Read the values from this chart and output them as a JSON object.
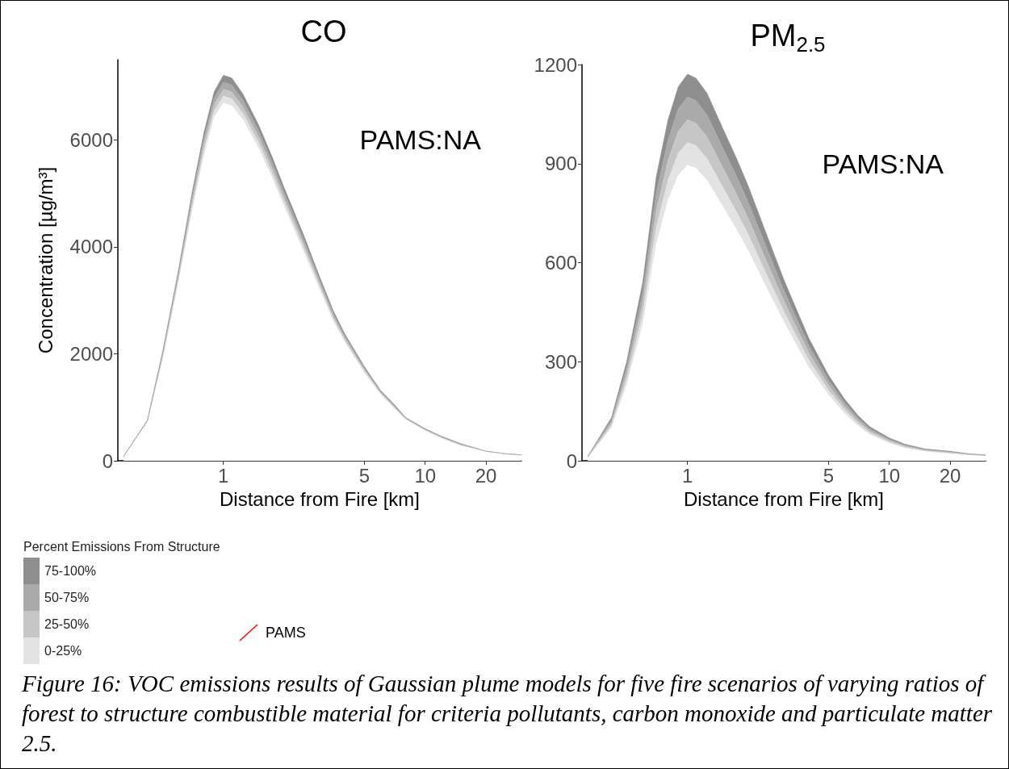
{
  "chart_data": [
    {
      "type": "area",
      "title": "CO",
      "xlabel": "Distance from Fire [km]",
      "ylabel": "Concentration [µg/m³]",
      "legend_title": "Percent Emissions From Structure",
      "log": "x",
      "stacked": true,
      "marker": "none",
      "grid": false,
      "legend": "bottom left",
      "xlim": [
        0.3,
        30
      ],
      "xticks": [
        1,
        5,
        10,
        20
      ],
      "ylim": [
        0,
        7500
      ],
      "yticks": [
        0,
        2000,
        4000,
        6000
      ],
      "x": [
        0.32,
        0.42,
        0.5,
        0.6,
        0.7,
        0.8,
        0.9,
        1,
        1.1,
        1.25,
        1.5,
        1.75,
        2,
        2.5,
        3,
        3.5,
        4,
        5,
        6,
        7,
        8,
        10,
        12,
        15,
        20,
        25,
        30
      ],
      "series": [
        {
          "color": "#ffffff",
          "values": [
            80,
            720,
            1880,
            3340,
            4660,
            5690,
            6420,
            6690,
            6640,
            6380,
            5830,
            5270,
            4750,
            3900,
            3200,
            2610,
            2210,
            1640,
            1240,
            980,
            770,
            560,
            420,
            280,
            180,
            130,
            110
          ]
        },
        {
          "name": "0-25%",
          "color": "#e3e3e3",
          "values": [
            0,
            10,
            40,
            60,
            90,
            110,
            120,
            130,
            130,
            120,
            110,
            100,
            90,
            80,
            60,
            50,
            40,
            30,
            20,
            20,
            10,
            10,
            10,
            10,
            0,
            0,
            0
          ]
        },
        {
          "name": "25-50%",
          "color": "#c6c6c6",
          "values": [
            0,
            10,
            40,
            60,
            90,
            110,
            120,
            130,
            130,
            120,
            110,
            100,
            90,
            80,
            60,
            50,
            40,
            30,
            20,
            20,
            10,
            10,
            10,
            10,
            0,
            0,
            0
          ]
        },
        {
          "name": "50-75%",
          "color": "#aaaaaa",
          "values": [
            0,
            10,
            40,
            60,
            90,
            110,
            120,
            130,
            130,
            120,
            110,
            100,
            90,
            80,
            60,
            50,
            40,
            30,
            20,
            20,
            10,
            10,
            10,
            10,
            0,
            0,
            0
          ]
        },
        {
          "name": "75-100%",
          "color": "#8e8e8e",
          "values": [
            0,
            10,
            40,
            60,
            90,
            110,
            120,
            130,
            130,
            120,
            110,
            100,
            90,
            80,
            60,
            50,
            40,
            30,
            20,
            20,
            10,
            10,
            10,
            10,
            0,
            0,
            0
          ]
        },
        {
          "type": "line",
          "name": "PAMS",
          "color": "#ff0000",
          "values": [
            null,
            null,
            null,
            null,
            null,
            null,
            null,
            null,
            null,
            null,
            null,
            null,
            null,
            null,
            null,
            null,
            null,
            null,
            null,
            null,
            null,
            null,
            null,
            null,
            null,
            null,
            null
          ]
        }
      ],
      "annotations": [
        "PAMS:NA",
        "Figure 16: VOC emissions results of Gaussian plume models for five fire scenarios of varying ratios of forest to structure combustible material for criteria pollutants, carbon monoxide and particulate matter 2.5."
      ]
    },
    {
      "type": "area",
      "title": "PM$_{2.5}$",
      "xlabel": "Distance from Fire [km]",
      "log": "x",
      "stacked": true,
      "marker": "none",
      "grid": false,
      "xlim": [
        0.3,
        30
      ],
      "xticks": [
        1,
        5,
        10,
        20
      ],
      "ylim": [
        0,
        1200
      ],
      "yticks": [
        0,
        300,
        600,
        900,
        1200
      ],
      "x": [
        0.32,
        0.42,
        0.5,
        0.6,
        0.7,
        0.8,
        0.9,
        1,
        1.1,
        1.25,
        1.5,
        1.75,
        2,
        2.5,
        3,
        3.5,
        4,
        5,
        6,
        7,
        8,
        10,
        12,
        15,
        20,
        25,
        30
      ],
      "series": [
        {
          "color": "#ffffff",
          "values": [
            9,
            99,
            229,
            413,
            656,
            788,
            865,
            895,
            887,
            849,
            769,
            700,
            636,
            516,
            421,
            345,
            282,
            199,
            143,
            105,
            79,
            53,
            38,
            28,
            21,
            17,
            14
          ]
        },
        {
          "color": "#e3e3e3",
          "values": [
            1,
            8,
            18,
            32,
            51,
            61,
            67,
            69,
            68,
            66,
            59,
            54,
            49,
            40,
            32,
            27,
            22,
            15,
            11,
            8,
            6,
            4,
            3,
            2,
            2,
            1,
            1
          ]
        },
        {
          "color": "#c6c6c6",
          "values": [
            1,
            8,
            18,
            32,
            51,
            61,
            67,
            69,
            68,
            66,
            59,
            54,
            49,
            40,
            32,
            27,
            22,
            15,
            11,
            8,
            6,
            4,
            3,
            2,
            2,
            1,
            1
          ]
        },
        {
          "color": "#aaaaaa",
          "values": [
            1,
            8,
            18,
            32,
            51,
            61,
            67,
            69,
            68,
            66,
            59,
            54,
            49,
            40,
            32,
            27,
            22,
            15,
            11,
            8,
            6,
            4,
            3,
            2,
            2,
            1,
            1
          ]
        },
        {
          "color": "#8e8e8e",
          "values": [
            1,
            8,
            18,
            32,
            51,
            61,
            67,
            69,
            68,
            66,
            59,
            54,
            49,
            40,
            32,
            27,
            22,
            15,
            11,
            8,
            6,
            4,
            3,
            2,
            2,
            1,
            1
          ]
        }
      ],
      "annotations": [
        "PAMS:NA"
      ]
    }
  ]
}
